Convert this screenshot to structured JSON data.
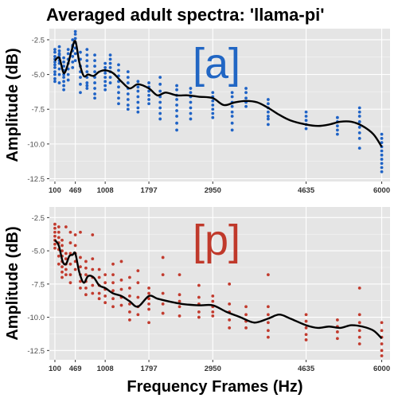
{
  "title": "Averaged adult spectra: 'llama-pi'",
  "xlabel": "Frequency Frames (Hz)",
  "colors": {
    "panel_bg": "#e5e5e5",
    "grid": "#ffffff",
    "blue": "#2166c4",
    "red": "#c0392b",
    "line": "#000000"
  },
  "chart_data": [
    {
      "type": "scatter",
      "panel_label": "[a]",
      "label_color": "#2166c4",
      "point_color": "#1f63c6",
      "ylabel": "Amplitude (dB)",
      "xlim": [
        0,
        6150
      ],
      "ylim": [
        -12.7,
        -1.7
      ],
      "x_ticks": [
        100,
        469,
        1008,
        1797,
        2950,
        4635,
        6000
      ],
      "y_ticks": [
        -2.5,
        -5.0,
        -7.5,
        -10.0,
        -12.5
      ],
      "y_tick_labels": [
        "-2.5",
        "-5.0",
        "-7.5",
        "-10.0",
        "-12.5"
      ],
      "grid": true,
      "smooth_line": {
        "x": [
          100,
          180,
          260,
          340,
          400,
          469,
          540,
          620,
          700,
          800,
          900,
          1008,
          1150,
          1300,
          1450,
          1600,
          1797,
          1950,
          2100,
          2300,
          2500,
          2700,
          2950,
          3150,
          3350,
          3550,
          3750,
          3950,
          4150,
          4350,
          4635,
          4850,
          5050,
          5250,
          5450,
          5650,
          5850,
          6000
        ],
        "y": [
          -4.0,
          -3.8,
          -4.9,
          -4.2,
          -3.3,
          -2.6,
          -4.1,
          -5.1,
          -5.0,
          -5.1,
          -4.8,
          -4.7,
          -4.9,
          -5.5,
          -6.0,
          -5.7,
          -6.0,
          -6.5,
          -6.3,
          -6.5,
          -6.5,
          -6.6,
          -6.7,
          -7.2,
          -7.0,
          -6.9,
          -7.0,
          -7.4,
          -7.9,
          -8.3,
          -8.6,
          -8.7,
          -8.6,
          -8.4,
          -8.4,
          -8.7,
          -9.3,
          -10.2
        ]
      },
      "columns": [
        {
          "x": 100,
          "y": [
            -3.4,
            -3.7,
            -3.9,
            -4.1,
            -4.3,
            -4.5,
            -4.8,
            -5.0,
            -5.3,
            -5.5,
            -3.2
          ]
        },
        {
          "x": 180,
          "y": [
            -3.0,
            -3.3,
            -3.6,
            -3.8,
            -4.0,
            -4.2,
            -4.6,
            -5.0,
            -5.6,
            -3.5
          ]
        },
        {
          "x": 260,
          "y": [
            -3.8,
            -4.1,
            -4.4,
            -4.7,
            -5.0,
            -5.2,
            -5.5,
            -5.8,
            -6.1
          ]
        },
        {
          "x": 340,
          "y": [
            -3.2,
            -3.5,
            -3.9,
            -4.2,
            -4.6,
            -5.0,
            -5.4
          ]
        },
        {
          "x": 420,
          "y": [
            -2.5,
            -2.9,
            -3.3,
            -3.7,
            -4.1,
            -4.5,
            -3.0
          ]
        },
        {
          "x": 469,
          "y": [
            -1.9,
            -2.1,
            -2.4,
            -2.7,
            -3.1,
            -3.5,
            -4.0
          ]
        },
        {
          "x": 560,
          "y": [
            -3.4,
            -3.9,
            -4.4,
            -4.8,
            -5.2,
            -5.7,
            -6.3
          ]
        },
        {
          "x": 680,
          "y": [
            -3.2,
            -3.6,
            -4.0,
            -4.4,
            -4.8,
            -5.2,
            -5.6,
            -6.0,
            -5.8
          ]
        },
        {
          "x": 820,
          "y": [
            -3.6,
            -4.0,
            -4.4,
            -4.8,
            -5.2,
            -5.6,
            -6.0,
            -6.4,
            -6.7
          ]
        },
        {
          "x": 1008,
          "y": [
            -4.2,
            -4.5,
            -4.7,
            -4.9,
            -5.2,
            -5.5,
            -5.8,
            -6.1
          ]
        },
        {
          "x": 1100,
          "y": [
            -3.6,
            -3.9,
            -4.2,
            -4.5,
            -4.8,
            -5.2,
            -5.6
          ]
        },
        {
          "x": 1250,
          "y": [
            -4.3,
            -4.7,
            -5.1,
            -5.5,
            -5.9,
            -6.3,
            -6.7,
            -7.1
          ]
        },
        {
          "x": 1420,
          "y": [
            -4.8,
            -5.2,
            -5.6,
            -6.0,
            -6.4,
            -6.8,
            -7.2,
            -7.5
          ]
        },
        {
          "x": 1600,
          "y": [
            -5.5,
            -5.9,
            -6.2,
            -6.6,
            -7.0,
            -7.4,
            -7.7
          ]
        },
        {
          "x": 1797,
          "y": [
            -5.6,
            -5.9,
            -6.2,
            -6.5,
            -6.8,
            -7.1
          ]
        },
        {
          "x": 2000,
          "y": [
            -5.2,
            -5.7,
            -6.2,
            -6.6,
            -7.0,
            -7.4,
            -7.8,
            -8.2
          ]
        },
        {
          "x": 2300,
          "y": [
            -5.8,
            -6.1,
            -6.5,
            -6.8,
            -7.2,
            -7.6,
            -8.0,
            -8.5,
            -9.0
          ]
        },
        {
          "x": 2550,
          "y": [
            -6.0,
            -6.3,
            -6.6,
            -7.0,
            -7.4,
            -7.8,
            -8.2
          ]
        },
        {
          "x": 2950,
          "y": [
            -6.3,
            -6.6,
            -6.9,
            -7.2,
            -7.5,
            -7.8,
            -8.1
          ]
        },
        {
          "x": 3300,
          "y": [
            -6.3,
            -6.6,
            -7.0,
            -7.3,
            -7.7,
            -8.0,
            -8.5,
            -9.0
          ]
        },
        {
          "x": 3550,
          "y": [
            -6.0,
            -6.3,
            -6.7,
            -7.0,
            -7.3
          ]
        },
        {
          "x": 3950,
          "y": [
            -6.8,
            -7.1,
            -7.4,
            -7.7,
            -8.0,
            -8.2,
            -8.6
          ]
        },
        {
          "x": 4635,
          "y": [
            -7.7,
            -8.0,
            -8.3,
            -8.6,
            -8.9
          ]
        },
        {
          "x": 5200,
          "y": [
            -8.1,
            -8.4,
            -8.7,
            -9.0,
            -9.3
          ]
        },
        {
          "x": 5600,
          "y": [
            -7.4,
            -7.7,
            -8.0,
            -8.4,
            -8.8,
            -9.2,
            -9.6,
            -10.3
          ]
        },
        {
          "x": 6000,
          "y": [
            -9.3,
            -9.6,
            -9.9,
            -10.2,
            -10.5,
            -10.8,
            -11.1,
            -11.4,
            -11.7,
            -12.0
          ]
        }
      ]
    },
    {
      "type": "scatter",
      "panel_label": "[p]",
      "label_color": "#c0392b",
      "point_color": "#c23b2e",
      "ylabel": "Amplitude (dB)",
      "xlim": [
        0,
        6150
      ],
      "ylim": [
        -13.2,
        -1.7
      ],
      "x_ticks": [
        100,
        469,
        1008,
        1797,
        2950,
        4635,
        6000
      ],
      "y_ticks": [
        -2.5,
        -5.0,
        -7.5,
        -10.0,
        -12.5
      ],
      "y_tick_labels": [
        "-2.5",
        "-5.0",
        "-7.5",
        "-10.0",
        "-12.5"
      ],
      "grid": true,
      "smooth_line": {
        "x": [
          100,
          170,
          240,
          300,
          360,
          420,
          469,
          540,
          620,
          700,
          800,
          900,
          1008,
          1150,
          1300,
          1450,
          1600,
          1797,
          1950,
          2150,
          2400,
          2700,
          2950,
          3200,
          3450,
          3700,
          3950,
          4150,
          4350,
          4635,
          4850,
          5050,
          5250,
          5450,
          5650,
          5850,
          6000
        ],
        "y": [
          -4.2,
          -4.6,
          -5.8,
          -6.0,
          -5.4,
          -5.3,
          -5.2,
          -6.6,
          -7.4,
          -6.9,
          -7.0,
          -7.6,
          -7.8,
          -8.2,
          -8.4,
          -8.8,
          -9.2,
          -8.4,
          -8.6,
          -8.8,
          -9.0,
          -9.1,
          -9.1,
          -9.6,
          -10.0,
          -10.4,
          -10.1,
          -9.8,
          -10.1,
          -10.6,
          -10.8,
          -10.7,
          -10.8,
          -10.6,
          -10.7,
          -11.0,
          -11.6
        ]
      },
      "columns": [
        {
          "x": 100,
          "y": [
            -3.0,
            -3.3,
            -3.6,
            -3.9,
            -4.2,
            -4.5,
            -4.8
          ]
        },
        {
          "x": 170,
          "y": [
            -3.2,
            -3.6,
            -4.0,
            -4.4,
            -4.9,
            -5.4,
            -6.0
          ]
        },
        {
          "x": 230,
          "y": [
            -4.2,
            -4.6,
            -5.0,
            -5.4,
            -5.8,
            -6.2,
            -6.6,
            -7.0
          ]
        },
        {
          "x": 300,
          "y": [
            -5.2,
            -5.6,
            -6.0,
            -6.4,
            -6.8,
            -3.2
          ]
        },
        {
          "x": 380,
          "y": [
            -3.6,
            -4.4,
            -5.2,
            -6.0,
            -6.8,
            -7.4
          ]
        },
        {
          "x": 469,
          "y": [
            -3.8,
            -4.6,
            -5.2,
            -5.8,
            -6.4
          ]
        },
        {
          "x": 560,
          "y": [
            -5.5,
            -6.2,
            -6.8,
            -7.3,
            -7.8,
            -3.6
          ]
        },
        {
          "x": 660,
          "y": [
            -5.8,
            -6.3,
            -6.8,
            -7.3,
            -7.8,
            -8.3
          ]
        },
        {
          "x": 780,
          "y": [
            -3.8,
            -5.6,
            -6.4,
            -7.0,
            -7.6,
            -8.2
          ]
        },
        {
          "x": 900,
          "y": [
            -6.4,
            -7.0,
            -7.6,
            -8.2,
            -8.6
          ]
        },
        {
          "x": 1008,
          "y": [
            -6.8,
            -7.4,
            -7.9,
            -8.4,
            -8.9
          ]
        },
        {
          "x": 1150,
          "y": [
            -6.0,
            -6.8,
            -7.4,
            -8.0,
            -8.6,
            -9.2
          ]
        },
        {
          "x": 1300,
          "y": [
            -5.8,
            -7.2,
            -7.9,
            -8.5,
            -9.1
          ]
        },
        {
          "x": 1450,
          "y": [
            -7.0,
            -7.8,
            -8.4,
            -9.0,
            -9.6,
            -10.2
          ]
        },
        {
          "x": 1600,
          "y": [
            -6.5,
            -7.4,
            -8.5,
            -9.2,
            -9.8
          ]
        },
        {
          "x": 1797,
          "y": [
            -7.8,
            -8.2,
            -8.6,
            -9.0,
            -9.4,
            -10.4
          ]
        },
        {
          "x": 2050,
          "y": [
            -5.5,
            -6.8,
            -8.2,
            -9.0,
            -9.7
          ]
        },
        {
          "x": 2350,
          "y": [
            -6.8,
            -8.3,
            -8.8,
            -9.2,
            -9.9
          ]
        },
        {
          "x": 2700,
          "y": [
            -7.6,
            -8.5,
            -9.0,
            -9.6,
            -10.0
          ]
        },
        {
          "x": 2950,
          "y": [
            -8.4,
            -8.8,
            -9.2,
            -9.6,
            -9.9
          ]
        },
        {
          "x": 3250,
          "y": [
            -7.5,
            -9.0,
            -9.6,
            -10.2,
            -10.8
          ]
        },
        {
          "x": 3550,
          "y": [
            -9.2,
            -9.8,
            -10.3,
            -10.8
          ]
        },
        {
          "x": 3950,
          "y": [
            -6.8,
            -9.2,
            -9.8,
            -10.4,
            -11.0,
            -11.5
          ]
        },
        {
          "x": 4635,
          "y": [
            -9.8,
            -10.3,
            -10.8,
            -11.3,
            -11.7
          ]
        },
        {
          "x": 5200,
          "y": [
            -10.2,
            -10.7,
            -11.1,
            -11.6
          ]
        },
        {
          "x": 5600,
          "y": [
            -7.8,
            -9.8,
            -10.4,
            -11.0,
            -11.5,
            -12.0
          ]
        },
        {
          "x": 6000,
          "y": [
            -10.4,
            -11.0,
            -11.5,
            -12.0,
            -12.5,
            -12.9
          ]
        }
      ]
    }
  ]
}
